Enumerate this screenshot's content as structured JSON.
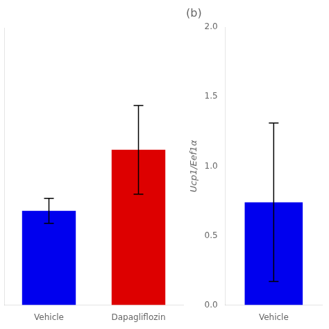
{
  "chart_data": [
    {
      "type": "bar",
      "categories": [
        "Vehicle",
        "Dapagliflozin"
      ],
      "values": [
        0.68,
        1.12
      ],
      "errors": [
        0.09,
        0.32
      ],
      "colors": [
        "#0000ee",
        "#dd0000"
      ],
      "ylim": [
        0,
        2.0
      ],
      "grid": false,
      "tick_labels": "x"
    },
    {
      "type": "bar",
      "title": "(b)",
      "categories": [
        "Vehicle"
      ],
      "values": [
        0.74
      ],
      "errors": [
        0.57
      ],
      "colors": [
        "#0000ee"
      ],
      "ylabel": "Ucp1/Eef1α",
      "ylim": [
        0.0,
        2.0
      ],
      "yticks": [
        {
          "value": 0.0,
          "label": "0.0"
        },
        0.5,
        {
          "value": 1.0,
          "label": "1.0"
        },
        1.5,
        {
          "value": 2.0,
          "label": "2.0"
        }
      ],
      "grid": false
    }
  ]
}
